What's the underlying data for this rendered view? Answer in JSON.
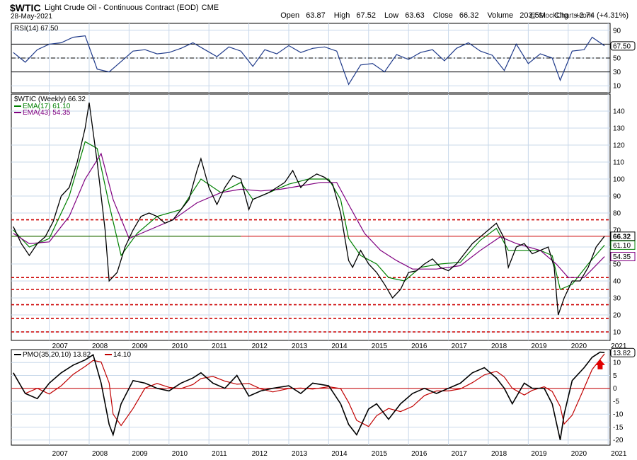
{
  "header": {
    "symbol": "$WTIC",
    "title": "Light Crude Oil - Continuous Contract (EOD)",
    "exchange": "CME",
    "date": "28-May-2021",
    "brand": "@ StockCharts.com",
    "open_label": "Open",
    "open": "63.87",
    "high_label": "High",
    "high": "67.52",
    "low_label": "Low",
    "low": "63.63",
    "close_label": "Close",
    "close": "66.32",
    "volume_label": "Volume",
    "volume": "203.5M",
    "chg_label": "Chg",
    "chg": "+2.74 (+4.31%)"
  },
  "colors": {
    "price": "#000000",
    "ema17": "#008000",
    "ema43": "#800080",
    "rsi": "#1f3a8a",
    "pmo": "#000000",
    "pmo_signal": "#c00000",
    "support": "#cc0000",
    "marker": "#e00000"
  },
  "chart_data": [
    {
      "type": "line",
      "panel": "RSI",
      "legend": "RSI(14) 67.50",
      "ylim": [
        0,
        100
      ],
      "ticks": [
        "90",
        "70",
        "50",
        "30",
        "10"
      ],
      "reference_levels": [
        70,
        50,
        30
      ],
      "last_value": "67.50",
      "x": [
        2006.6,
        2006.9,
        2007.2,
        2007.5,
        2007.8,
        2008.1,
        2008.4,
        2008.7,
        2009.0,
        2009.3,
        2009.6,
        2009.9,
        2010.2,
        2010.5,
        2010.8,
        2011.1,
        2011.4,
        2011.7,
        2012.0,
        2012.3,
        2012.6,
        2012.9,
        2013.2,
        2013.5,
        2013.8,
        2014.1,
        2014.4,
        2014.7,
        2015.0,
        2015.3,
        2015.6,
        2015.9,
        2016.2,
        2016.5,
        2016.8,
        2017.1,
        2017.4,
        2017.7,
        2018.0,
        2018.3,
        2018.6,
        2018.9,
        2019.2,
        2019.5,
        2019.8,
        2020.1,
        2020.3,
        2020.6,
        2020.9,
        2021.1,
        2021.3,
        2021.41
      ],
      "values": [
        58,
        44,
        62,
        70,
        72,
        80,
        82,
        34,
        30,
        45,
        60,
        62,
        56,
        58,
        64,
        72,
        62,
        52,
        66,
        60,
        38,
        62,
        56,
        68,
        58,
        64,
        66,
        60,
        12,
        40,
        42,
        30,
        55,
        48,
        58,
        62,
        46,
        64,
        72,
        60,
        54,
        32,
        70,
        42,
        56,
        50,
        18,
        60,
        62,
        80,
        72,
        67.5
      ]
    },
    {
      "type": "line",
      "panel": "Price",
      "legend": "$WTIC (Weekly) 66.32",
      "ylim": [
        5,
        150
      ],
      "ticks": [
        "140",
        "130",
        "120",
        "110",
        "100",
        "90",
        "80",
        "70",
        "60",
        "50",
        "40",
        "30",
        "20",
        "10"
      ],
      "support_levels": [
        76,
        42,
        35,
        26,
        18,
        10
      ],
      "last_close_level": 66.32,
      "last_value_label": "66.32",
      "x": [
        2006.6,
        2006.8,
        2007.0,
        2007.2,
        2007.4,
        2007.6,
        2007.8,
        2008.0,
        2008.2,
        2008.4,
        2008.5,
        2008.7,
        2008.9,
        2009.0,
        2009.2,
        2009.4,
        2009.6,
        2009.8,
        2010.0,
        2010.2,
        2010.4,
        2010.6,
        2010.8,
        2011.0,
        2011.2,
        2011.3,
        2011.5,
        2011.7,
        2011.9,
        2012.1,
        2012.3,
        2012.5,
        2012.6,
        2012.8,
        2013.0,
        2013.2,
        2013.4,
        2013.6,
        2013.8,
        2014.0,
        2014.2,
        2014.4,
        2014.6,
        2014.8,
        2015.0,
        2015.1,
        2015.3,
        2015.5,
        2015.7,
        2015.9,
        2016.1,
        2016.3,
        2016.5,
        2016.7,
        2016.9,
        2017.1,
        2017.3,
        2017.5,
        2017.7,
        2017.9,
        2018.1,
        2018.3,
        2018.5,
        2018.7,
        2018.9,
        2019.0,
        2019.2,
        2019.4,
        2019.6,
        2019.8,
        2020.0,
        2020.15,
        2020.25,
        2020.4,
        2020.6,
        2020.8,
        2021.0,
        2021.2,
        2021.41
      ],
      "values": [
        72,
        62,
        55,
        62,
        66,
        75,
        90,
        95,
        110,
        130,
        145,
        110,
        70,
        40,
        45,
        60,
        70,
        78,
        80,
        78,
        74,
        76,
        82,
        88,
        105,
        112,
        95,
        85,
        95,
        102,
        100,
        82,
        88,
        90,
        92,
        95,
        98,
        105,
        95,
        100,
        103,
        101,
        97,
        80,
        52,
        48,
        58,
        50,
        45,
        38,
        30,
        35,
        45,
        46,
        50,
        53,
        48,
        46,
        50,
        56,
        62,
        66,
        70,
        74,
        65,
        48,
        60,
        62,
        56,
        58,
        60,
        48,
        20,
        30,
        40,
        40,
        48,
        60,
        66.32
      ],
      "series": [
        {
          "name": "EMA(17) 61.10",
          "label": "61.10",
          "x": [
            2006.6,
            2007.0,
            2007.5,
            2008.0,
            2008.4,
            2008.7,
            2009.0,
            2009.3,
            2009.7,
            2010.2,
            2010.8,
            2011.3,
            2011.8,
            2012.3,
            2012.6,
            2013.0,
            2013.5,
            2014.0,
            2014.5,
            2014.8,
            2015.0,
            2015.3,
            2015.7,
            2016.0,
            2016.4,
            2016.8,
            2017.3,
            2017.8,
            2018.3,
            2018.7,
            2019.0,
            2019.4,
            2019.8,
            2020.1,
            2020.3,
            2020.6,
            2021.0,
            2021.41
          ],
          "values": [
            70,
            60,
            65,
            90,
            122,
            118,
            85,
            55,
            68,
            78,
            82,
            100,
            92,
            98,
            88,
            92,
            97,
            100,
            100,
            88,
            65,
            55,
            50,
            42,
            40,
            48,
            50,
            51,
            64,
            71,
            58,
            58,
            58,
            55,
            35,
            38,
            50,
            61.1
          ]
        },
        {
          "name": "EMA(43) 54.35",
          "label": "54.35",
          "x": [
            2006.6,
            2007.0,
            2007.5,
            2008.0,
            2008.4,
            2008.8,
            2009.1,
            2009.5,
            2010.0,
            2010.6,
            2011.2,
            2011.8,
            2012.3,
            2012.8,
            2013.3,
            2013.8,
            2014.3,
            2014.7,
            2015.0,
            2015.4,
            2015.8,
            2016.2,
            2016.6,
            2017.2,
            2017.8,
            2018.3,
            2018.8,
            2019.2,
            2019.8,
            2020.2,
            2020.5,
            2020.9,
            2021.41
          ],
          "values": [
            68,
            62,
            63,
            78,
            100,
            115,
            88,
            65,
            70,
            76,
            86,
            92,
            94,
            93,
            94,
            96,
            98,
            98,
            85,
            68,
            58,
            52,
            47,
            47,
            49,
            58,
            66,
            62,
            58,
            50,
            42,
            42,
            54.35
          ]
        }
      ]
    },
    {
      "type": "line",
      "panel": "PMO",
      "legend_line": "PMO(35,20,10) 13.82",
      "legend_signal": "14.10",
      "ylim": [
        -22,
        15
      ],
      "ticks": [
        "10",
        "5",
        "0",
        "-5",
        "-10",
        "-15",
        "-20"
      ],
      "last_value_label": "13.82",
      "x": [
        2006.6,
        2006.9,
        2007.2,
        2007.5,
        2007.8,
        2008.1,
        2008.4,
        2008.6,
        2008.8,
        2009.0,
        2009.1,
        2009.3,
        2009.6,
        2009.9,
        2010.2,
        2010.5,
        2010.8,
        2011.1,
        2011.3,
        2011.6,
        2011.9,
        2012.2,
        2012.5,
        2012.8,
        2013.1,
        2013.5,
        2013.8,
        2014.1,
        2014.5,
        2014.8,
        2015.0,
        2015.2,
        2015.5,
        2015.7,
        2016.0,
        2016.3,
        2016.6,
        2016.9,
        2017.2,
        2017.5,
        2017.8,
        2018.1,
        2018.4,
        2018.7,
        2018.9,
        2019.1,
        2019.4,
        2019.6,
        2019.9,
        2020.1,
        2020.3,
        2020.4,
        2020.6,
        2020.9,
        2021.1,
        2021.3,
        2021.41
      ],
      "values": [
        6,
        -2,
        -4,
        2,
        6,
        9,
        11,
        13,
        2,
        -14,
        -18,
        -6,
        3,
        2,
        0,
        -1,
        2,
        4,
        6,
        2,
        0,
        5,
        -3,
        -1,
        0,
        1,
        -2,
        2,
        1,
        -6,
        -14,
        -18,
        -8,
        -6,
        -12,
        -6,
        -2,
        0,
        -2,
        0,
        2,
        6,
        8,
        4,
        0,
        -6,
        2,
        0,
        0,
        -6,
        -20,
        -10,
        3,
        8,
        12,
        14,
        13.82
      ]
    }
  ],
  "x_axis": {
    "ticks": [
      "2007",
      "2008",
      "2009",
      "2010",
      "2011",
      "2012",
      "2013",
      "2014",
      "2015",
      "2016",
      "2017",
      "2018",
      "2019",
      "2020",
      "2021"
    ]
  }
}
